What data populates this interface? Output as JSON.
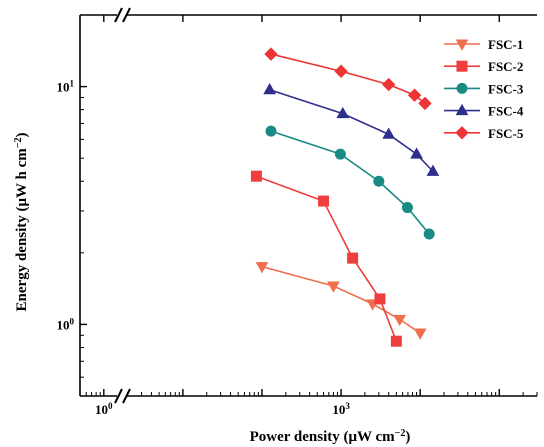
{
  "chart_data": {
    "type": "line",
    "x_scale": "log",
    "y_scale": "log",
    "xlabel_main": "Power density (",
    "xlabel_unit": "μW cm",
    "xlabel_exp": "−2",
    "xlabel_close": ")",
    "ylabel_main": "Energy density (",
    "ylabel_unit": "μW h cm",
    "ylabel_exp": "−2",
    "ylabel_close": ")",
    "x_ticks": [
      {
        "value": 1,
        "base": "10",
        "exp": "0"
      },
      {
        "value": 1000,
        "base": "10",
        "exp": "3"
      }
    ],
    "y_ticks": [
      {
        "value": 1,
        "base": "10",
        "exp": "0"
      },
      {
        "value": 10,
        "base": "10",
        "exp": "1"
      }
    ],
    "xlim": [
      0.5,
      300000
    ],
    "ylim": [
      0.5,
      20
    ],
    "axis_break": true,
    "legend_position": "top-right",
    "series": [
      {
        "name": "FSC-1",
        "color": "#ef6f4d",
        "marker": "triangle-down",
        "x": [
          100,
          800,
          2500,
          5500,
          10000
        ],
        "y": [
          1.75,
          1.45,
          1.22,
          1.05,
          0.92
        ]
      },
      {
        "name": "FSC-2",
        "color": "#ee3e3e",
        "marker": "square",
        "x": [
          85,
          600,
          1400,
          3100,
          5000
        ],
        "y": [
          4.2,
          3.3,
          1.9,
          1.28,
          0.85
        ]
      },
      {
        "name": "FSC-3",
        "color": "#1a8a84",
        "marker": "circle",
        "x": [
          130,
          980,
          3000,
          6900,
          13000
        ],
        "y": [
          6.5,
          5.2,
          4.0,
          3.1,
          2.4
        ]
      },
      {
        "name": "FSC-4",
        "color": "#2e2e8f",
        "marker": "triangle-up",
        "x": [
          125,
          1050,
          4000,
          9000,
          14500
        ],
        "y": [
          9.7,
          7.7,
          6.3,
          5.2,
          4.4
        ]
      },
      {
        "name": "FSC-5",
        "color": "#ee3535",
        "marker": "diamond",
        "x": [
          130,
          1000,
          4000,
          8500,
          11500
        ],
        "y": [
          13.7,
          11.6,
          10.2,
          9.2,
          8.5
        ]
      }
    ]
  }
}
